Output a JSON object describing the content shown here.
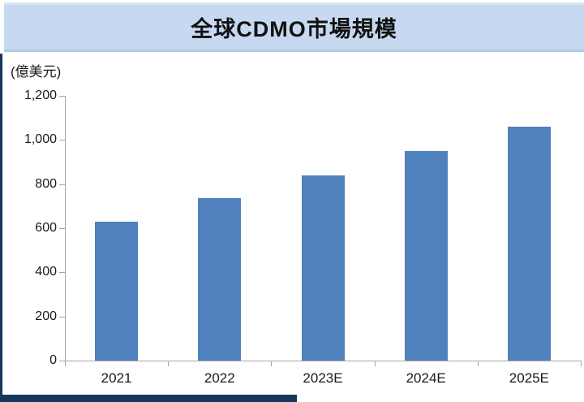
{
  "page": {
    "banner_title": "全球CDMO市場規模"
  },
  "chart_data": {
    "type": "bar",
    "title": "全球CDMO市場規模",
    "unit_label": "(億美元)",
    "categories": [
      "2021",
      "2022",
      "2023E",
      "2024E",
      "2025E"
    ],
    "values": [
      630,
      735,
      840,
      950,
      1060
    ],
    "xlabel": "",
    "ylabel": "(億美元)",
    "ylim": [
      0,
      1200
    ],
    "ytick_step": 200,
    "ytick_labels": [
      "0",
      "200",
      "400",
      "600",
      "800",
      "1,000",
      "1,200"
    ],
    "grid": false,
    "legend": "none",
    "data_labels": "none"
  },
  "colors": {
    "bar_fill": "#4f81bd",
    "axis_gray": "#a6a6a6",
    "banner_bg": "#c6d9f0",
    "edge_dark": "#17375d",
    "text": "#1a1a1a"
  }
}
